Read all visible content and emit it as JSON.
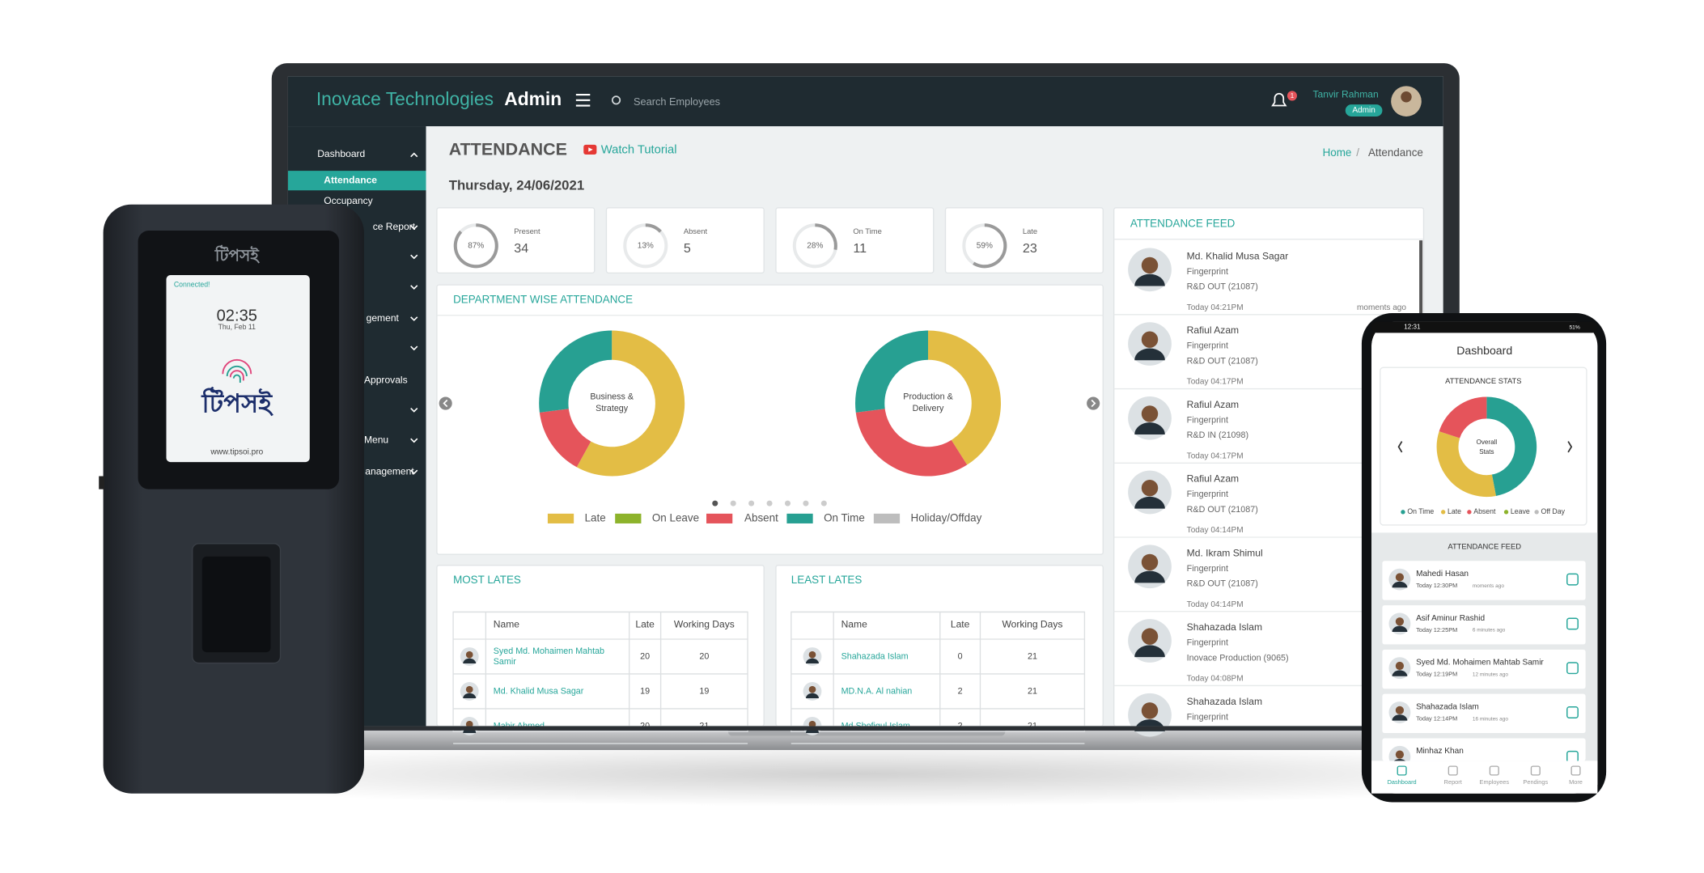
{
  "device": {
    "brand": "টিপসই",
    "status": "Connected!",
    "time": "02:35",
    "date": "Thu, Feb 11",
    "logo": "টিপসই",
    "url": "www.tipsoi.pro"
  },
  "laptop": {
    "header": {
      "company": "Inovace Technologies",
      "role": "Admin",
      "search_placeholder": "Search Employees",
      "notifications": "1",
      "user": "Tanvir Rahman",
      "user_role": "Admin"
    },
    "sidebar": [
      "Dashboard",
      "Attendance",
      "Occupancy",
      "ce Report",
      "gement",
      "Approvals",
      "Menu",
      "anagement"
    ],
    "page": {
      "title": "ATTENDANCE",
      "tutorial": "Watch Tutorial",
      "breadcrumb": [
        "Home",
        "Attendance"
      ],
      "separator": "/",
      "date": "Thursday, 24/06/2021"
    },
    "stats": [
      {
        "label": "Present",
        "value": "34",
        "percent": 87,
        "percent_label": "87%"
      },
      {
        "label": "Absent",
        "value": "5",
        "percent": 13,
        "percent_label": "13%"
      },
      {
        "label": "On Time",
        "value": "11",
        "percent": 28,
        "percent_label": "28%"
      },
      {
        "label": "Late",
        "value": "23",
        "percent": 59,
        "percent_label": "59%"
      }
    ],
    "department": {
      "title": "DEPARTMENT WISE ATTENDANCE",
      "legend": [
        {
          "name": "Late",
          "color": "#e3bd45"
        },
        {
          "name": "On Leave",
          "color": "#8db32b"
        },
        {
          "name": "Absent",
          "color": "#e5545b"
        },
        {
          "name": "On Time",
          "color": "#27a092"
        },
        {
          "name": "Holiday/Offday",
          "color": "#bdbdbd"
        }
      ],
      "charts": [
        {
          "label": [
            "Business &",
            "Strategy"
          ],
          "values": [
            58,
            0,
            15,
            27,
            0
          ]
        },
        {
          "label": [
            "Production &",
            "Delivery"
          ],
          "values": [
            41,
            0,
            32,
            27,
            0
          ]
        }
      ]
    },
    "feed": {
      "title": "ATTENDANCE FEED",
      "items": [
        {
          "name": "Md. Khalid Musa Sagar",
          "method": "Fingerprint",
          "detail": "R&D OUT (21087)",
          "time": "Today 04:21PM",
          "ago": "moments ago"
        },
        {
          "name": "Rafiul Azam",
          "method": "Fingerprint",
          "detail": "R&D OUT (21087)",
          "time": "Today 04:17PM"
        },
        {
          "name": "Rafiul Azam",
          "method": "Fingerprint",
          "detail": "R&D IN (21098)",
          "time": "Today 04:17PM"
        },
        {
          "name": "Rafiul Azam",
          "method": "Fingerprint",
          "detail": "R&D OUT (21087)",
          "time": "Today 04:14PM"
        },
        {
          "name": "Md. Ikram Shimul",
          "method": "Fingerprint",
          "detail": "R&D OUT (21087)",
          "time": "Today 04:14PM"
        },
        {
          "name": "Shahazada Islam",
          "method": "Fingerprint",
          "detail": "Inovace Production (9065)",
          "time": "Today 04:08PM"
        },
        {
          "name": "Shahazada Islam",
          "method": "Fingerprint"
        }
      ]
    },
    "most_lates": {
      "title": "MOST LATES",
      "columns": [
        "Name",
        "Late",
        "Working Days"
      ],
      "rows": [
        [
          "Syed Md. Mohaimen Mahtab Samir",
          "20",
          "20"
        ],
        [
          "Md. Khalid Musa Sagar",
          "19",
          "19"
        ],
        [
          "Mahir Ahmed",
          "20",
          "21"
        ]
      ]
    },
    "least_lates": {
      "title": "LEAST LATES",
      "columns": [
        "Name",
        "Late",
        "Working Days"
      ],
      "rows": [
        [
          "Shahazada Islam",
          "0",
          "21"
        ],
        [
          "MD.N.A. Al nahian",
          "2",
          "21"
        ],
        [
          "Md Shofiqul Islam",
          "2",
          "21"
        ]
      ]
    }
  },
  "phone": {
    "time": "12:31",
    "battery": "51%",
    "title": "Dashboard",
    "stats_title": "ATTENDANCE STATS",
    "chart_label": [
      "Overall",
      "Stats"
    ],
    "legend": [
      {
        "name": "On Time",
        "color": "#27a092"
      },
      {
        "name": "Late",
        "color": "#e3bd45"
      },
      {
        "name": "Absent",
        "color": "#e5545b"
      },
      {
        "name": "Leave",
        "color": "#8db32b"
      },
      {
        "name": "Off Day",
        "color": "#bdbdbd"
      }
    ],
    "values": [
      47,
      33,
      20,
      0,
      0
    ],
    "feed_title": "ATTENDANCE FEED",
    "feed": [
      {
        "name": "Mahedi Hasan",
        "time": "Today 12:30PM",
        "ago": "moments ago"
      },
      {
        "name": "Asif Aminur Rashid",
        "time": "Today 12:25PM",
        "ago": "6 minutes ago"
      },
      {
        "name": "Syed Md. Mohaimen Mahtab Samir",
        "time": "Today 12:19PM",
        "ago": "12 minutes ago"
      },
      {
        "name": "Shahazada Islam",
        "time": "Today 12:14PM",
        "ago": "16 minutes ago"
      },
      {
        "name": "Minhaz Khan"
      }
    ],
    "nav": [
      "Dashboard",
      "Report",
      "Employees",
      "Pendings",
      "More"
    ]
  }
}
